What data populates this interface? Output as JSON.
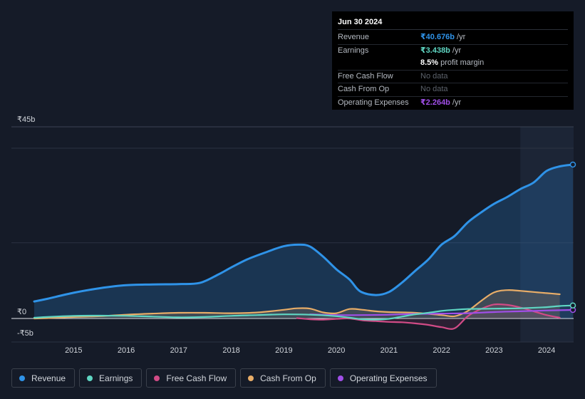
{
  "tooltip": {
    "date": "Jun 30 2024",
    "rows": [
      {
        "label": "Revenue",
        "value": "₹40.676b",
        "unit": "/yr",
        "color": "#2f93e8"
      },
      {
        "label": "Earnings",
        "value": "₹3.438b",
        "unit": "/yr",
        "color": "#5fd6c3"
      },
      {
        "label": "",
        "value": "8.5%",
        "unit": "profit margin",
        "color": "#ffffff"
      },
      {
        "label": "Free Cash Flow",
        "value": "No data"
      },
      {
        "label": "Cash From Op",
        "value": "No data"
      },
      {
        "label": "Operating Expenses",
        "value": "₹2.264b",
        "unit": "/yr",
        "color": "#a04fe8"
      }
    ]
  },
  "legend": [
    {
      "label": "Revenue",
      "color": "#2f93e8"
    },
    {
      "label": "Earnings",
      "color": "#5fd6c3"
    },
    {
      "label": "Free Cash Flow",
      "color": "#d14b86"
    },
    {
      "label": "Cash From Op",
      "color": "#e8ad68"
    },
    {
      "label": "Operating Expenses",
      "color": "#a04fe8"
    }
  ],
  "chart_data": {
    "type": "line",
    "y_tick_labels": [
      "₹45b",
      "₹0",
      "-₹5b"
    ],
    "ylim": [
      -5,
      45
    ],
    "xlim": [
      2014.2,
      2024.5
    ],
    "x_tick_labels": [
      "2015",
      "2016",
      "2017",
      "2018",
      "2019",
      "2020",
      "2021",
      "2022",
      "2023",
      "2024"
    ],
    "x_ticks": [
      2015,
      2016,
      2017,
      2018,
      2019,
      2020,
      2021,
      2022,
      2023,
      2024
    ],
    "grid": true,
    "forecast_shade_start": 2023.5,
    "series": [
      {
        "name": "Revenue",
        "color": "#2f93e8",
        "area": true,
        "points": [
          [
            2014.25,
            4.5
          ],
          [
            2014.5,
            5.2
          ],
          [
            2015,
            6.8
          ],
          [
            2015.5,
            8.0
          ],
          [
            2016,
            8.8
          ],
          [
            2016.5,
            9.0
          ],
          [
            2017,
            9.1
          ],
          [
            2017.4,
            9.4
          ],
          [
            2017.75,
            11.6
          ],
          [
            2018,
            13.5
          ],
          [
            2018.3,
            15.6
          ],
          [
            2018.6,
            17.2
          ],
          [
            2019,
            19.1
          ],
          [
            2019.3,
            19.5
          ],
          [
            2019.5,
            19.0
          ],
          [
            2019.75,
            16.3
          ],
          [
            2020,
            13.0
          ],
          [
            2020.25,
            10.3
          ],
          [
            2020.45,
            7.2
          ],
          [
            2020.75,
            6.2
          ],
          [
            2021,
            7.0
          ],
          [
            2021.25,
            9.5
          ],
          [
            2021.5,
            12.6
          ],
          [
            2021.75,
            15.6
          ],
          [
            2022,
            19.5
          ],
          [
            2022.25,
            21.8
          ],
          [
            2022.5,
            25.4
          ],
          [
            2022.75,
            28.0
          ],
          [
            2023,
            30.3
          ],
          [
            2023.25,
            32.1
          ],
          [
            2023.5,
            34.2
          ],
          [
            2023.75,
            35.9
          ],
          [
            2024,
            39.0
          ],
          [
            2024.25,
            40.2
          ],
          [
            2024.5,
            40.676
          ]
        ]
      },
      {
        "name": "Earnings",
        "color": "#5fd6c3",
        "points": [
          [
            2014.25,
            0.2
          ],
          [
            2014.5,
            0.4
          ],
          [
            2015,
            0.7
          ],
          [
            2015.5,
            0.75
          ],
          [
            2016,
            0.7
          ],
          [
            2016.5,
            0.5
          ],
          [
            2017,
            0.3
          ],
          [
            2017.5,
            0.4
          ],
          [
            2018,
            0.7
          ],
          [
            2018.5,
            0.9
          ],
          [
            2019,
            1.1
          ],
          [
            2019.5,
            1.0
          ],
          [
            2020,
            0.6
          ],
          [
            2020.25,
            0.2
          ],
          [
            2020.5,
            -0.2
          ],
          [
            2020.75,
            -0.3
          ],
          [
            2021,
            -0.1
          ],
          [
            2021.25,
            0.5
          ],
          [
            2021.5,
            1.1
          ],
          [
            2021.75,
            1.5
          ],
          [
            2022,
            2.0
          ],
          [
            2022.25,
            2.3
          ],
          [
            2022.5,
            2.5
          ],
          [
            2023,
            2.6
          ],
          [
            2023.5,
            2.7
          ],
          [
            2024,
            3.0
          ],
          [
            2024.25,
            3.3
          ],
          [
            2024.5,
            3.438
          ]
        ]
      },
      {
        "name": "Free Cash Flow",
        "color": "#d14b86",
        "points": [
          [
            2019.25,
            0.1
          ],
          [
            2019.5,
            -0.2
          ],
          [
            2019.75,
            -0.3
          ],
          [
            2020,
            -0.1
          ],
          [
            2020.25,
            0.0
          ],
          [
            2020.5,
            -0.5
          ],
          [
            2020.75,
            -0.7
          ],
          [
            2021,
            -0.9
          ],
          [
            2021.25,
            -1.0
          ],
          [
            2021.5,
            -1.3
          ],
          [
            2021.75,
            -1.7
          ],
          [
            2022,
            -2.3
          ],
          [
            2022.25,
            -2.6
          ],
          [
            2022.5,
            0.6
          ],
          [
            2022.75,
            2.5
          ],
          [
            2023,
            3.7
          ],
          [
            2023.25,
            3.6
          ],
          [
            2023.5,
            2.9
          ],
          [
            2023.75,
            1.9
          ],
          [
            2024,
            0.9
          ],
          [
            2024.25,
            0.2
          ]
        ]
      },
      {
        "name": "Cash From Op",
        "color": "#e8ad68",
        "points": [
          [
            2014.25,
            0.0
          ],
          [
            2014.5,
            0.1
          ],
          [
            2015,
            0.4
          ],
          [
            2015.5,
            0.6
          ],
          [
            2016,
            1.0
          ],
          [
            2016.5,
            1.3
          ],
          [
            2017,
            1.5
          ],
          [
            2017.5,
            1.5
          ],
          [
            2018,
            1.4
          ],
          [
            2018.5,
            1.6
          ],
          [
            2019,
            2.3
          ],
          [
            2019.25,
            2.7
          ],
          [
            2019.5,
            2.6
          ],
          [
            2019.75,
            1.6
          ],
          [
            2020,
            1.4
          ],
          [
            2020.25,
            2.5
          ],
          [
            2020.5,
            2.3
          ],
          [
            2020.75,
            1.9
          ],
          [
            2021,
            1.7
          ],
          [
            2021.5,
            1.5
          ],
          [
            2022,
            0.9
          ],
          [
            2022.25,
            0.6
          ],
          [
            2022.5,
            2.0
          ],
          [
            2022.75,
            4.6
          ],
          [
            2023,
            6.9
          ],
          [
            2023.25,
            7.5
          ],
          [
            2023.5,
            7.3
          ],
          [
            2023.75,
            7.0
          ],
          [
            2024,
            6.7
          ],
          [
            2024.25,
            6.4
          ]
        ]
      },
      {
        "name": "Operating Expenses",
        "color": "#a04fe8",
        "points": [
          [
            2019.5,
            1.1
          ],
          [
            2020,
            0.9
          ],
          [
            2020.5,
            0.9
          ],
          [
            2021,
            1.0
          ],
          [
            2021.5,
            1.2
          ],
          [
            2022,
            1.3
          ],
          [
            2022.5,
            1.4
          ],
          [
            2023,
            1.7
          ],
          [
            2023.5,
            1.9
          ],
          [
            2024,
            2.1
          ],
          [
            2024.5,
            2.264
          ]
        ]
      }
    ]
  }
}
